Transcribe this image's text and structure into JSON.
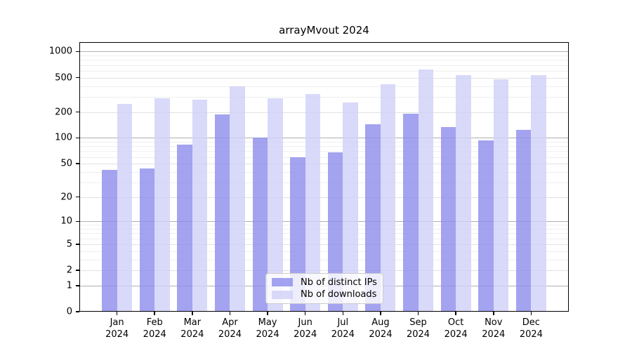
{
  "figure": {
    "background": "#ffffff",
    "title": "arrayMvout 2024"
  },
  "chart_data": {
    "type": "bar",
    "title": "arrayMvout 2024",
    "xlabel": "",
    "ylabel": "",
    "y_scale": "log1p",
    "ylim": [
      0,
      1285
    ],
    "y_ticks": [
      0,
      1,
      2,
      5,
      10,
      20,
      50,
      100,
      200,
      500,
      1000
    ],
    "grid": true,
    "grid_colors": {
      "major": "#b0b0b0",
      "minor": "#e2e2e2",
      "subminor": "#efefef"
    },
    "legend_position": "lower center",
    "categories": [
      "Jan 2024",
      "Feb 2024",
      "Mar 2024",
      "Apr 2024",
      "May 2024",
      "Jun 2024",
      "Jul 2024",
      "Aug 2024",
      "Sep 2024",
      "Oct 2024",
      "Nov 2024",
      "Dec 2024"
    ],
    "series": [
      {
        "name": "Nb of distinct IPs",
        "color": "rgba(140,140,236,0.8)",
        "hex_on_white": "#a3a3f0",
        "values": [
          42,
          44,
          84,
          188,
          100,
          60,
          68,
          145,
          190,
          135,
          94,
          125
        ]
      },
      {
        "name": "Nb of downloads",
        "color": "rgba(208,208,248,0.8)",
        "hex_on_white": "#d9d9f9",
        "values": [
          250,
          290,
          280,
          400,
          290,
          320,
          260,
          420,
          620,
          530,
          480,
          530
        ]
      }
    ]
  }
}
